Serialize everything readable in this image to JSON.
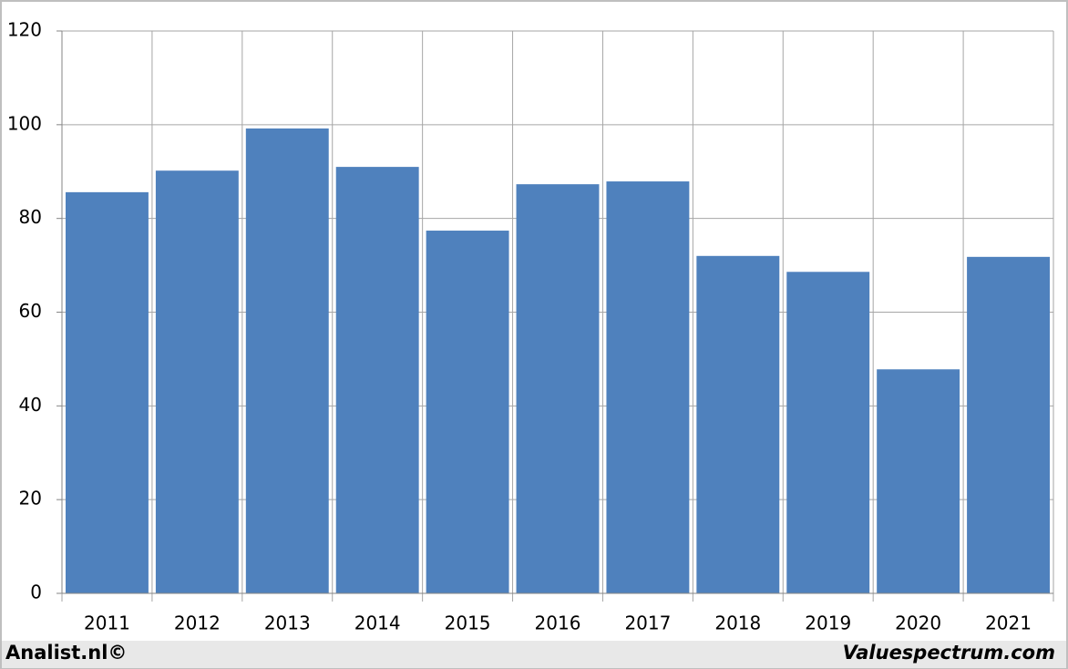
{
  "chart_data": {
    "type": "bar",
    "categories": [
      "2011",
      "2012",
      "2013",
      "2014",
      "2015",
      "2016",
      "2017",
      "2018",
      "2019",
      "2020",
      "2021"
    ],
    "values": [
      85.6,
      90.2,
      99.2,
      91.0,
      77.4,
      87.3,
      87.9,
      72.0,
      68.6,
      47.8,
      71.8
    ],
    "color": "#4f81bd",
    "ylim": [
      0,
      120
    ],
    "yticks": [
      0,
      20,
      40,
      60,
      80,
      100,
      120
    ],
    "grid": true
  },
  "footer": {
    "left": "Analist.nl©",
    "right": "Valuespectrum.com"
  }
}
